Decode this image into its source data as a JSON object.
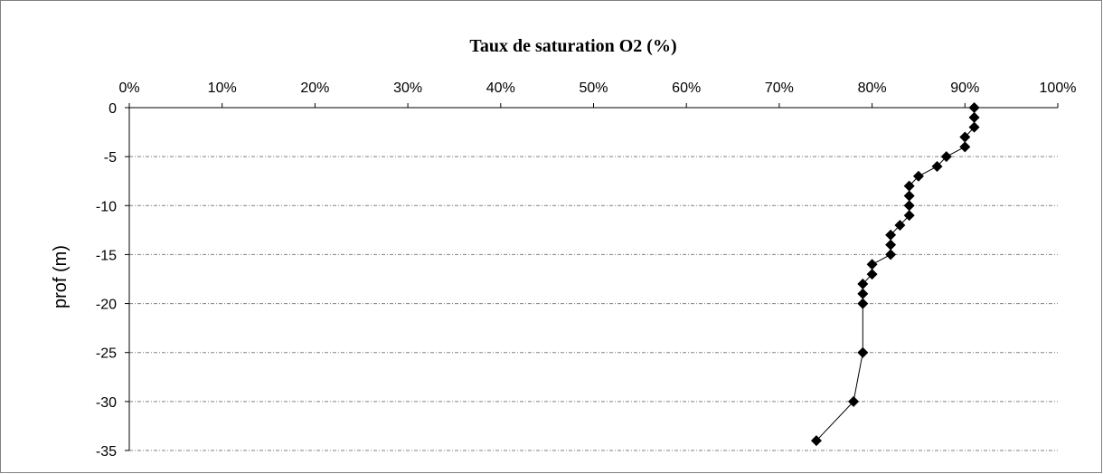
{
  "chart_data": {
    "type": "scatter",
    "title": "Taux de saturation O2 (%)",
    "xlabel": "",
    "ylabel": "prof (m)",
    "x_axis_position": "top",
    "xlim": [
      0,
      100
    ],
    "ylim": [
      -35,
      0
    ],
    "x_ticks": [
      0,
      10,
      20,
      30,
      40,
      50,
      60,
      70,
      80,
      90,
      100
    ],
    "x_tick_labels": [
      "0%",
      "10%",
      "20%",
      "30%",
      "40%",
      "50%",
      "60%",
      "70%",
      "80%",
      "90%",
      "100%"
    ],
    "y_ticks": [
      0,
      -5,
      -10,
      -15,
      -20,
      -25,
      -30,
      -35
    ],
    "y_tick_labels": [
      "0",
      "-5",
      "-10",
      "-15",
      "-20",
      "-25",
      "-30",
      "-35"
    ],
    "grid": "horizontal dashed",
    "marker": "diamond",
    "line_color": "#000000",
    "marker_color": "#000000",
    "grid_color": "#808080",
    "series": [
      {
        "points": [
          {
            "x": 91,
            "y": 0
          },
          {
            "x": 91,
            "y": -1
          },
          {
            "x": 91,
            "y": -2
          },
          {
            "x": 90,
            "y": -3
          },
          {
            "x": 90,
            "y": -4
          },
          {
            "x": 88,
            "y": -5
          },
          {
            "x": 87,
            "y": -6
          },
          {
            "x": 85,
            "y": -7
          },
          {
            "x": 84,
            "y": -8
          },
          {
            "x": 84,
            "y": -9
          },
          {
            "x": 84,
            "y": -10
          },
          {
            "x": 84,
            "y": -11
          },
          {
            "x": 83,
            "y": -12
          },
          {
            "x": 82,
            "y": -13
          },
          {
            "x": 82,
            "y": -14
          },
          {
            "x": 82,
            "y": -15
          },
          {
            "x": 80,
            "y": -16
          },
          {
            "x": 80,
            "y": -17
          },
          {
            "x": 79,
            "y": -18
          },
          {
            "x": 79,
            "y": -19
          },
          {
            "x": 79,
            "y": -20
          },
          {
            "x": 79,
            "y": -25
          },
          {
            "x": 78,
            "y": -30
          },
          {
            "x": 74,
            "y": -34
          }
        ]
      }
    ]
  }
}
